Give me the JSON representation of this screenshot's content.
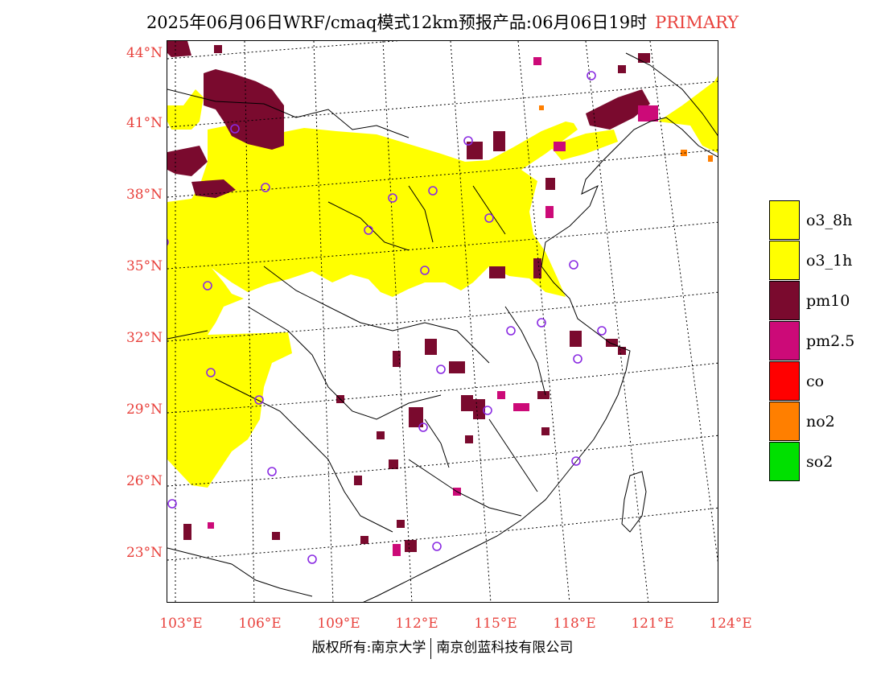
{
  "title": {
    "main": "2025年06月06日WRF/cmaq模式12km预报产品:06月06日19时",
    "tag": "PRIMARY"
  },
  "axes": {
    "lat_labels": [
      "44°N",
      "41°N",
      "38°N",
      "35°N",
      "32°N",
      "29°N",
      "26°N",
      "23°N"
    ],
    "lon_labels": [
      "103°E",
      "106°E",
      "109°E",
      "112°E",
      "115°E",
      "118°E",
      "121°E",
      "124°E"
    ]
  },
  "legend": {
    "items": [
      {
        "label": "o3_8h",
        "color": "#ffff00"
      },
      {
        "label": "o3_1h",
        "color": "#ffff00"
      },
      {
        "label": "pm10",
        "color": "#7a0a2e"
      },
      {
        "label": "pm2.5",
        "color": "#cc0a78"
      },
      {
        "label": "co",
        "color": "#ff0000"
      },
      {
        "label": "no2",
        "color": "#ff7f00"
      },
      {
        "label": "so2",
        "color": "#00e000"
      }
    ]
  },
  "footer": {
    "left": "版权所有:南京大学",
    "right": "南京创蓝科技有限公司"
  },
  "colors": {
    "label_red": "#e8413c",
    "o3": "#ffff00",
    "pm10": "#7a0a2e",
    "pm25": "#cc0a78",
    "no2": "#ff7f00",
    "station": "#8a2be2"
  },
  "chart_data": {
    "type": "heatmap",
    "x_range": [
      103,
      124
    ],
    "y_range": [
      21,
      44.5
    ],
    "primary_pollutant_regions": [
      {
        "pollutant": "o3",
        "region": "North China Plain & northern belt (35°N–41°N)"
      },
      {
        "pollutant": "o3",
        "region": "Sichuan basin west (26°N–35°N)"
      },
      {
        "pollutant": "pm10",
        "region": "Inner Mongolia (39°N–43°N, 104°E–107°E)"
      },
      {
        "pollutant": "pm10",
        "region": "scattered cells across central and southern China"
      },
      {
        "pollutant": "pm2.5",
        "region": "scattered cells, Liaoning coast and south China"
      },
      {
        "pollutant": "no2",
        "region": "isolated cells near 40°N 122°E"
      }
    ]
  }
}
